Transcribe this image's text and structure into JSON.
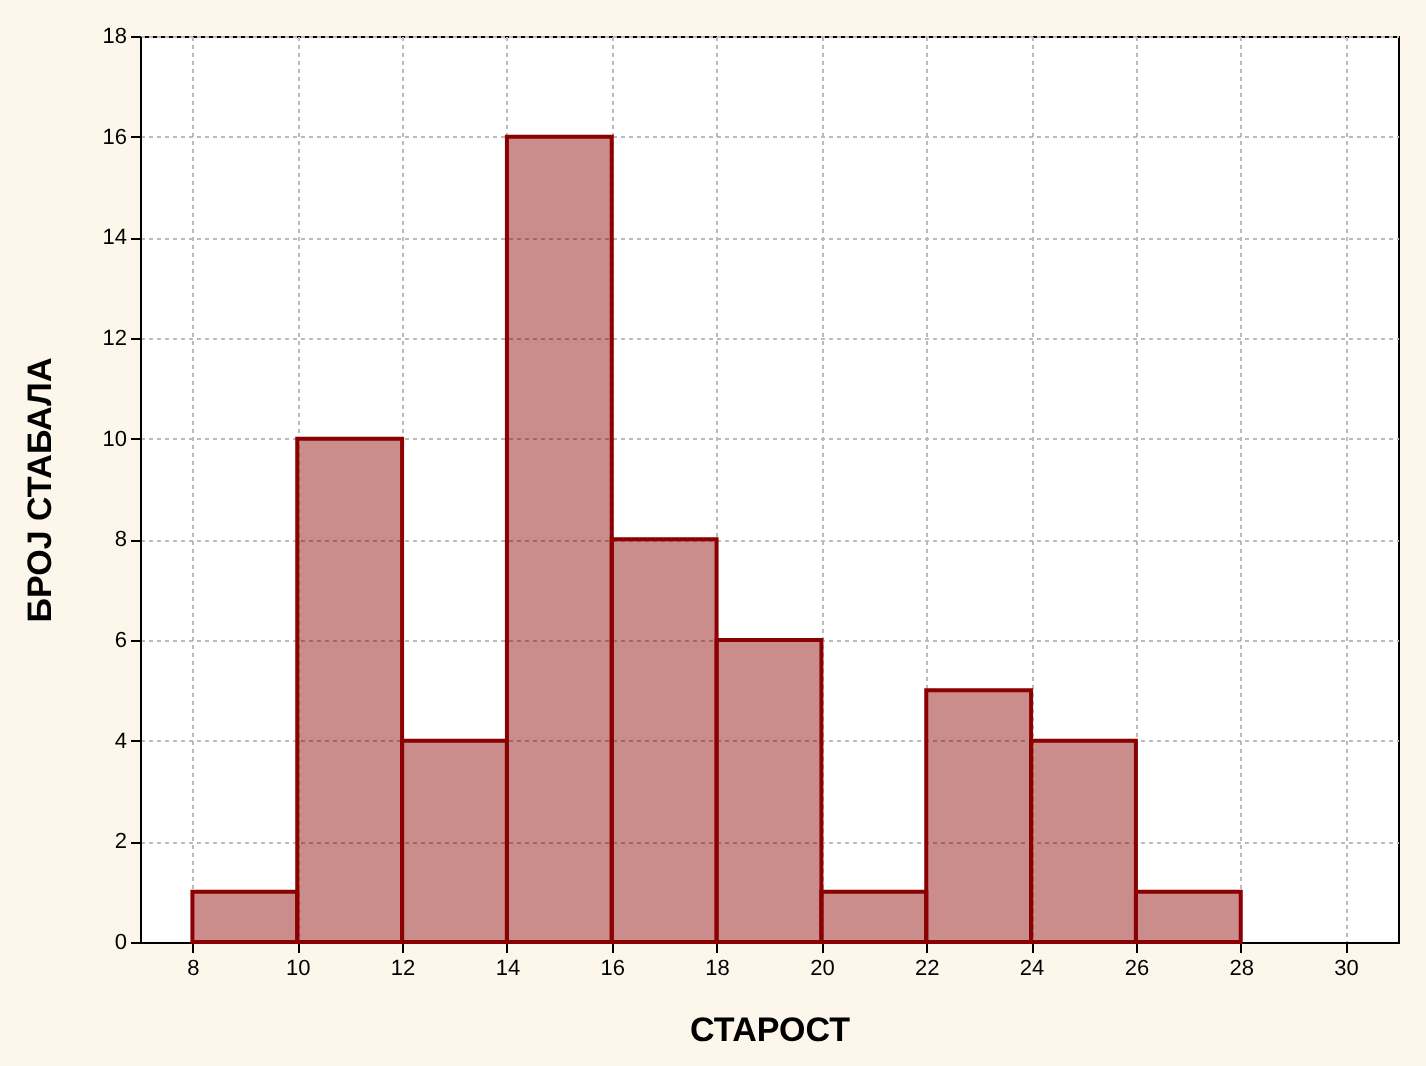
{
  "chart_data": {
    "type": "histogram",
    "xlabel": "СТАРОСТ",
    "ylabel": "БРОЈ СТАБАЛА",
    "bins": [
      8,
      10,
      12,
      14,
      16,
      18,
      20,
      22,
      24,
      26,
      28
    ],
    "values": [
      1,
      10,
      4,
      16,
      8,
      6,
      1,
      5,
      4,
      1
    ],
    "color": "#8b0000",
    "xlim": [
      7,
      31
    ],
    "xticks": [
      8,
      10,
      12,
      14,
      16,
      18,
      20,
      22,
      24,
      26,
      28,
      30
    ],
    "ylim": [
      0,
      18
    ],
    "yticks": [
      0,
      2,
      4,
      6,
      8,
      10,
      12,
      14,
      16,
      18
    ],
    "grid": true
  }
}
